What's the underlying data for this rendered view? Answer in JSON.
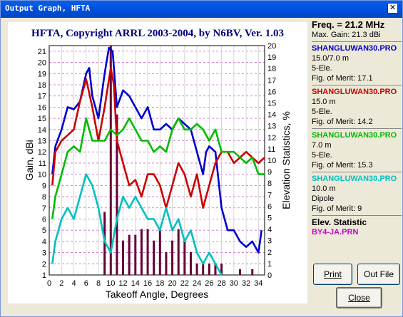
{
  "window": {
    "title": "Output Graph, HFTA"
  },
  "graph": {
    "title": "HFTA, Copyright ARRL 2003-2004, by N6BV, Ver. 1.03",
    "xlabel": "Takeoff Angle, Degrees",
    "ylabel_left": "Gain, dBi",
    "ylabel_right": "Elevation Statistics, %"
  },
  "info": {
    "freq": "Freq. = 21.2 MHz",
    "max_gain": "Max. Gain: 21.3 dBi",
    "entries": [
      {
        "file": "SHANGLUWAN30.PRO",
        "color": "#0000cc",
        "line1": "15.0/7.0 m",
        "line2": "5-Ele.",
        "fom": "Fig. of Merit:  17.1"
      },
      {
        "file": "SHANGLUWAN30.PRO",
        "color": "#cc0000",
        "line1": "15.0 m",
        "line2": "5-Ele.",
        "fom": "Fig. of Merit:  14.2"
      },
      {
        "file": "SHANGLUWAN30.PRO",
        "color": "#00bb00",
        "line1": "7.0 m",
        "line2": "5-Ele.",
        "fom": "Fig. of Merit:  15.3"
      },
      {
        "file": "SHANGLUWAN30.PRO",
        "color": "#00c0c0",
        "line1": "10.0 m",
        "line2": "Dipole",
        "fom": "Fig. of Merit:  9"
      }
    ],
    "elev_title": "Elev. Statistic",
    "elev_file": "BY4-JA.PRN",
    "elev_color": "#cc00cc"
  },
  "buttons": {
    "print": "Print",
    "outfile": "Out File",
    "close": "Close"
  },
  "chart_data": {
    "type": "line",
    "title": "HFTA, Copyright ARRL 2003-2004, by N6BV, Ver. 1.03",
    "xlabel": "Takeoff Angle, Degrees",
    "ylabel": "Gain, dBi",
    "y2label": "Elevation Statistics, %",
    "xlim": [
      0,
      35
    ],
    "ylim": [
      1,
      21.5
    ],
    "y2lim": [
      0,
      20
    ],
    "xticks": [
      0,
      2,
      4,
      6,
      8,
      10,
      12,
      14,
      16,
      18,
      20,
      22,
      24,
      26,
      28,
      30,
      32,
      34
    ],
    "yticks": [
      1,
      2,
      3,
      4,
      5,
      6,
      7,
      8,
      9,
      10,
      11,
      12,
      13,
      14,
      15,
      16,
      17,
      18,
      19,
      20,
      21
    ],
    "y2ticks": [
      0,
      1,
      2,
      3,
      4,
      5,
      6,
      7,
      8,
      9,
      10,
      11,
      12,
      13,
      14,
      15,
      16,
      17,
      18,
      19,
      20
    ],
    "series": [
      {
        "color": "#0000cc",
        "points": [
          [
            0.5,
            10
          ],
          [
            1,
            12.5
          ],
          [
            2,
            14
          ],
          [
            3,
            16
          ],
          [
            4,
            15.8
          ],
          [
            5,
            16.5
          ],
          [
            6,
            19
          ],
          [
            6.5,
            19.5
          ],
          [
            7,
            17
          ],
          [
            8,
            15
          ],
          [
            9,
            19
          ],
          [
            9.7,
            21.3
          ],
          [
            10.3,
            21
          ],
          [
            11,
            16
          ],
          [
            12,
            17.5
          ],
          [
            13,
            17
          ],
          [
            14,
            16
          ],
          [
            15,
            15
          ],
          [
            16,
            16
          ],
          [
            17,
            14
          ],
          [
            18,
            14
          ],
          [
            19,
            14.5
          ],
          [
            20,
            14
          ],
          [
            21,
            15
          ],
          [
            22,
            14.5
          ],
          [
            23,
            14
          ],
          [
            24,
            12
          ],
          [
            25,
            10
          ],
          [
            25.5,
            12
          ],
          [
            26,
            12.5
          ],
          [
            27,
            12
          ],
          [
            28,
            7
          ],
          [
            29,
            5
          ],
          [
            30,
            5
          ],
          [
            31,
            4
          ],
          [
            32,
            3.5
          ],
          [
            33,
            4
          ],
          [
            34,
            3
          ],
          [
            34.5,
            5
          ]
        ]
      },
      {
        "color": "#cc0000",
        "points": [
          [
            0.5,
            9
          ],
          [
            1,
            12
          ],
          [
            2,
            13
          ],
          [
            3,
            13.5
          ],
          [
            4,
            14
          ],
          [
            5,
            16.5
          ],
          [
            6,
            18.5
          ],
          [
            7,
            16
          ],
          [
            8,
            13
          ],
          [
            9,
            16
          ],
          [
            10,
            19.5
          ],
          [
            10.5,
            18
          ],
          [
            11,
            13
          ],
          [
            12,
            11
          ],
          [
            13,
            9
          ],
          [
            14,
            9.5
          ],
          [
            15,
            8
          ],
          [
            16,
            10
          ],
          [
            17,
            10
          ],
          [
            18,
            9
          ],
          [
            19,
            7
          ],
          [
            20,
            9
          ],
          [
            21,
            11
          ],
          [
            22,
            10
          ],
          [
            23,
            8
          ],
          [
            24,
            10
          ],
          [
            25,
            7
          ],
          [
            26,
            9
          ],
          [
            27,
            11
          ],
          [
            28,
            12
          ],
          [
            29,
            12
          ],
          [
            30,
            11
          ],
          [
            31,
            11.5
          ],
          [
            32,
            12
          ],
          [
            33,
            11.5
          ],
          [
            34,
            11
          ],
          [
            35,
            11.5
          ]
        ]
      },
      {
        "color": "#00bb00",
        "points": [
          [
            0.5,
            6
          ],
          [
            1,
            8
          ],
          [
            2,
            10
          ],
          [
            3,
            12
          ],
          [
            4,
            12.5
          ],
          [
            5,
            12
          ],
          [
            6,
            15
          ],
          [
            7,
            13
          ],
          [
            8,
            13
          ],
          [
            9,
            13
          ],
          [
            10,
            14
          ],
          [
            11,
            13.5
          ],
          [
            12,
            14
          ],
          [
            13,
            15
          ],
          [
            14,
            14
          ],
          [
            15,
            13
          ],
          [
            16,
            13
          ],
          [
            17,
            12
          ],
          [
            18,
            12.5
          ],
          [
            19,
            12
          ],
          [
            20,
            14
          ],
          [
            21,
            15
          ],
          [
            22,
            14
          ],
          [
            23,
            14
          ],
          [
            24,
            14.5
          ],
          [
            25,
            14
          ],
          [
            26,
            13
          ],
          [
            27,
            14
          ],
          [
            28,
            12
          ],
          [
            29,
            12
          ],
          [
            30,
            12
          ],
          [
            31,
            11.5
          ],
          [
            32,
            11
          ],
          [
            33,
            11.5
          ],
          [
            34,
            10
          ],
          [
            35,
            10
          ]
        ]
      },
      {
        "color": "#00c0c0",
        "points": [
          [
            0.5,
            2
          ],
          [
            1,
            4
          ],
          [
            2,
            6
          ],
          [
            3,
            7
          ],
          [
            4,
            6
          ],
          [
            5,
            8
          ],
          [
            6,
            10
          ],
          [
            7,
            9
          ],
          [
            8,
            7
          ],
          [
            9,
            4
          ],
          [
            10,
            3
          ],
          [
            11,
            6
          ],
          [
            12,
            8
          ],
          [
            13,
            7
          ],
          [
            14,
            8
          ],
          [
            15,
            7
          ],
          [
            16,
            6
          ],
          [
            17,
            6
          ],
          [
            18,
            5
          ],
          [
            19,
            7
          ],
          [
            20,
            5
          ],
          [
            21,
            6
          ],
          [
            22,
            4
          ],
          [
            23,
            5
          ],
          [
            24,
            3
          ],
          [
            25,
            2
          ],
          [
            26,
            3
          ],
          [
            27,
            2
          ],
          [
            28,
            1
          ]
        ]
      }
    ],
    "bars": {
      "color": "#660033",
      "x": [
        9,
        10,
        11,
        12,
        13,
        14,
        15,
        16,
        17,
        18,
        19,
        20,
        21,
        22,
        23,
        24,
        25,
        26,
        27,
        28,
        31,
        33
      ],
      "values": [
        5.5,
        20,
        14,
        3,
        3.5,
        3.5,
        4,
        4,
        3,
        4,
        2,
        3,
        4,
        3,
        2,
        1,
        1,
        1,
        1,
        1,
        0.5,
        0.5
      ]
    }
  }
}
